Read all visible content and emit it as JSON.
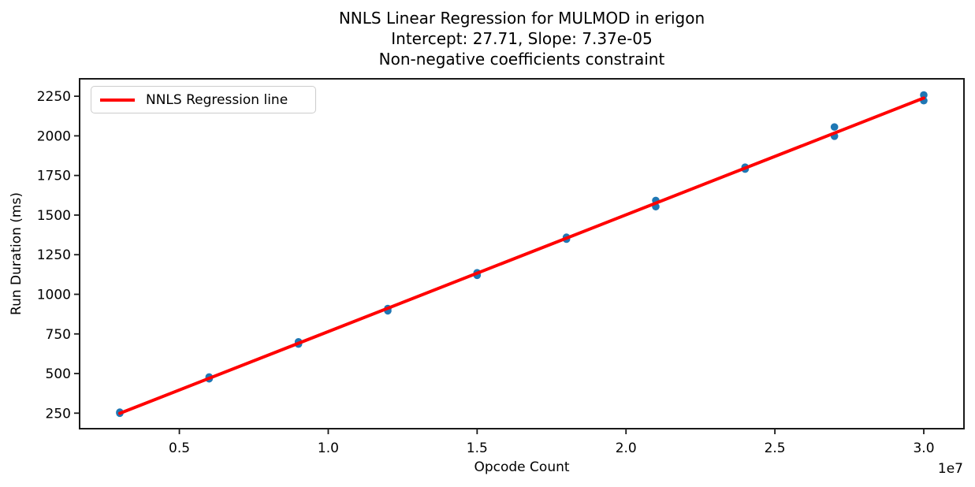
{
  "chart_data": {
    "type": "scatter",
    "title_lines": [
      "NNLS Linear Regression for MULMOD in erigon",
      "Intercept: 27.71, Slope: 7.37e-05",
      "Non-negative coefficients constraint"
    ],
    "xlabel": "Opcode Count",
    "ylabel": "Run Duration (ms)",
    "x_axis_offset_label": "1e7",
    "xlim": [
      1650000,
      31350000
    ],
    "ylim": [
      152,
      2360
    ],
    "grid": false,
    "axis_color": "#1a1a1a",
    "background": "#ffffff",
    "xticks": [
      {
        "value": 5000000,
        "label": "0.5"
      },
      {
        "value": 10000000,
        "label": "1.0"
      },
      {
        "value": 15000000,
        "label": "1.5"
      },
      {
        "value": 20000000,
        "label": "2.0"
      },
      {
        "value": 25000000,
        "label": "2.5"
      },
      {
        "value": 30000000,
        "label": "3.0"
      }
    ],
    "yticks": [
      {
        "value": 250,
        "label": "250"
      },
      {
        "value": 500,
        "label": "500"
      },
      {
        "value": 750,
        "label": "750"
      },
      {
        "value": 1000,
        "label": "1000"
      },
      {
        "value": 1250,
        "label": "1250"
      },
      {
        "value": 1500,
        "label": "1500"
      },
      {
        "value": 1750,
        "label": "1750"
      },
      {
        "value": 2000,
        "label": "2000"
      },
      {
        "value": 2250,
        "label": "2250"
      }
    ],
    "scatter": {
      "name": "run-duration-samples",
      "color": "#1f77b4",
      "marker_radius": 4.8,
      "points": [
        [
          3000000,
          256
        ],
        [
          3000000,
          250
        ],
        [
          6000000,
          478
        ],
        [
          6000000,
          467
        ],
        [
          9000000,
          700
        ],
        [
          9000000,
          686
        ],
        [
          12000000,
          910
        ],
        [
          12000000,
          896
        ],
        [
          15000000,
          1136
        ],
        [
          15000000,
          1120
        ],
        [
          18000000,
          1360
        ],
        [
          18000000,
          1348
        ],
        [
          21000000,
          1592
        ],
        [
          21000000,
          1553
        ],
        [
          24000000,
          1802
        ],
        [
          24000000,
          1790
        ],
        [
          27000000,
          2056
        ],
        [
          27000000,
          1998
        ],
        [
          30000000,
          2258
        ],
        [
          30000000,
          2222
        ]
      ]
    },
    "regression": {
      "label": "NNLS Regression line",
      "color": "#ff0000",
      "intercept": 27.71,
      "slope": 7.37e-05,
      "x_start": 3000000,
      "x_end": 30000000,
      "line_width": 4
    },
    "legend": {
      "position": "upper-left",
      "entries": [
        {
          "label": "NNLS Regression line",
          "color": "#ff0000"
        }
      ]
    }
  }
}
